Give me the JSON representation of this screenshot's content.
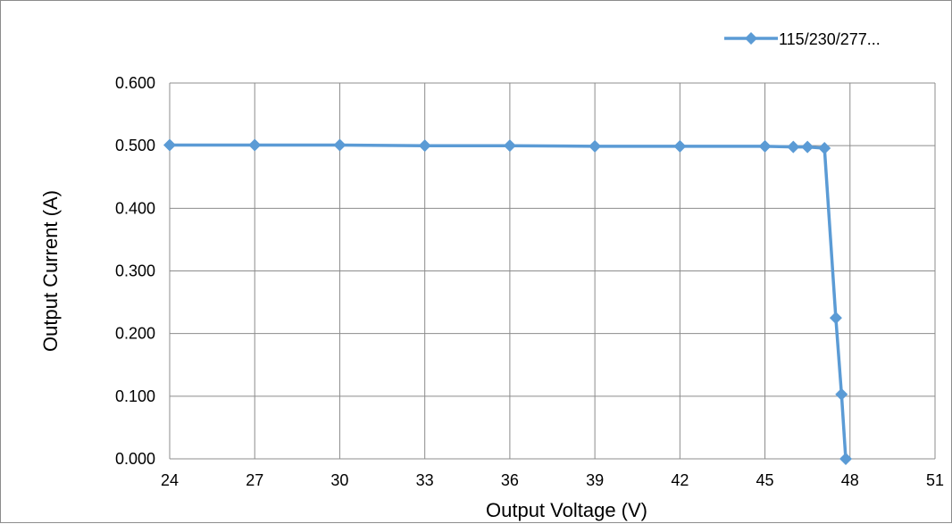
{
  "chart_data": {
    "type": "line",
    "title": "",
    "xlabel": "Output Voltage (V)",
    "ylabel": "Output Current (A)",
    "xlim": [
      24,
      51
    ],
    "ylim": [
      0,
      0.6
    ],
    "x_ticks": [
      "24",
      "27",
      "30",
      "33",
      "36",
      "39",
      "42",
      "45",
      "48",
      "51"
    ],
    "y_ticks": [
      "0.000",
      "0.100",
      "0.200",
      "0.300",
      "0.400",
      "0.500",
      "0.600"
    ],
    "grid": true,
    "legend_position": "top-right",
    "series": [
      {
        "name": "115/230/277...",
        "color": "#5b9bd5",
        "marker": "diamond",
        "x": [
          24,
          27,
          30,
          33,
          36,
          39,
          42,
          45,
          46,
          46.5,
          47.1,
          47.5,
          47.7,
          47.85
        ],
        "y": [
          0.501,
          0.501,
          0.501,
          0.5,
          0.5,
          0.499,
          0.499,
          0.499,
          0.498,
          0.498,
          0.496,
          0.225,
          0.103,
          0.0
        ]
      }
    ]
  }
}
